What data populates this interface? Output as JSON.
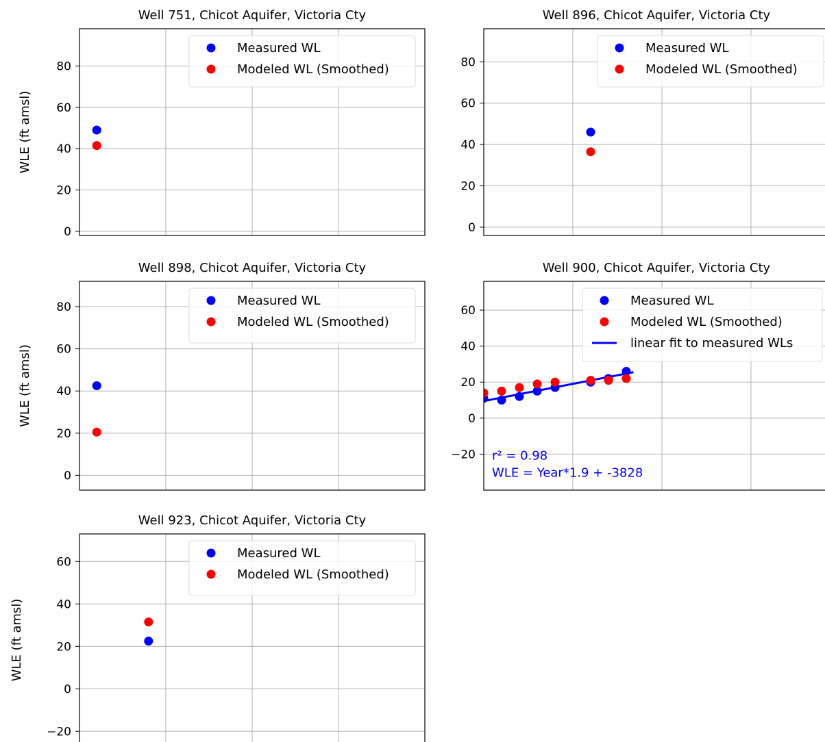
{
  "chart_data": [
    {
      "type": "scatter",
      "title": "Well 751, Chicot Aquifer, Victoria Cty",
      "xlabel": "",
      "ylabel": "WLE (ft amsl)",
      "ylim": [
        -2,
        98
      ],
      "yticks": [
        0,
        20,
        40,
        60,
        80
      ],
      "grid": true,
      "legend_position": "top-right",
      "series": [
        {
          "name": "Measured WL",
          "color": "#0000ff",
          "x": [
            0.05
          ],
          "values": [
            49
          ]
        },
        {
          "name": "Modeled WL (Smoothed)",
          "color": "#ff0000",
          "x": [
            0.05
          ],
          "values": [
            41.5
          ]
        }
      ]
    },
    {
      "type": "scatter",
      "title": "Well 896, Chicot Aquifer, Victoria Cty",
      "xlabel": "",
      "ylabel": "",
      "ylim": [
        -4,
        96
      ],
      "yticks": [
        0,
        20,
        40,
        60,
        80
      ],
      "grid": true,
      "legend_position": "top-right",
      "series": [
        {
          "name": "Measured WL",
          "color": "#0000ff",
          "x": [
            0.3
          ],
          "values": [
            46
          ]
        },
        {
          "name": "Modeled WL (Smoothed)",
          "color": "#ff0000",
          "x": [
            0.3
          ],
          "values": [
            36.5
          ]
        }
      ]
    },
    {
      "type": "scatter",
      "title": "Well 898, Chicot Aquifer, Victoria Cty",
      "xlabel": "",
      "ylabel": "WLE (ft amsl)",
      "ylim": [
        -7,
        92
      ],
      "yticks": [
        0,
        20,
        40,
        60,
        80
      ],
      "grid": true,
      "legend_position": "top-right",
      "series": [
        {
          "name": "Measured WL",
          "color": "#0000ff",
          "x": [
            0.05
          ],
          "values": [
            42.5
          ]
        },
        {
          "name": "Modeled WL (Smoothed)",
          "color": "#ff0000",
          "x": [
            0.05
          ],
          "values": [
            20.5
          ]
        }
      ]
    },
    {
      "type": "scatter",
      "title": "Well 900, Chicot Aquifer, Victoria Cty",
      "xlabel": "",
      "ylabel": "",
      "ylim": [
        -40,
        76
      ],
      "yticks": [
        -20,
        0,
        20,
        40,
        60
      ],
      "grid": true,
      "legend_position": "top-right",
      "series": [
        {
          "name": "Measured WL",
          "color": "#0000ff",
          "x": [
            0.0,
            0.05,
            0.1,
            0.15,
            0.2,
            0.3,
            0.35,
            0.4
          ],
          "values": [
            11,
            10,
            12,
            15,
            17,
            20,
            22,
            26
          ]
        },
        {
          "name": "Modeled WL (Smoothed)",
          "color": "#ff0000",
          "x": [
            0.0,
            0.05,
            0.1,
            0.15,
            0.2,
            0.3,
            0.35,
            0.4
          ],
          "values": [
            14,
            15,
            17,
            19,
            20,
            21,
            21,
            22
          ]
        }
      ],
      "fit": {
        "name": "linear fit to measured WLs",
        "color": "#0000ff",
        "x": [
          0.0,
          0.42
        ],
        "values": [
          9.5,
          25.5
        ]
      },
      "annotations": [
        "r² = 0.98",
        "WLE = Year*1.9 + -3828"
      ]
    },
    {
      "type": "scatter",
      "title": "Well 923, Chicot Aquifer, Victoria Cty",
      "xlabel": "",
      "ylabel": "WLE (ft amsl)",
      "ylim": [
        -27,
        73
      ],
      "yticks": [
        -20,
        0,
        20,
        40,
        60
      ],
      "grid": true,
      "legend_position": "top-right",
      "series": [
        {
          "name": "Measured WL",
          "color": "#0000ff",
          "x": [
            0.2
          ],
          "values": [
            22.5
          ]
        },
        {
          "name": "Modeled WL (Smoothed)",
          "color": "#ff0000",
          "x": [
            0.2
          ],
          "values": [
            31.5
          ]
        }
      ]
    }
  ]
}
